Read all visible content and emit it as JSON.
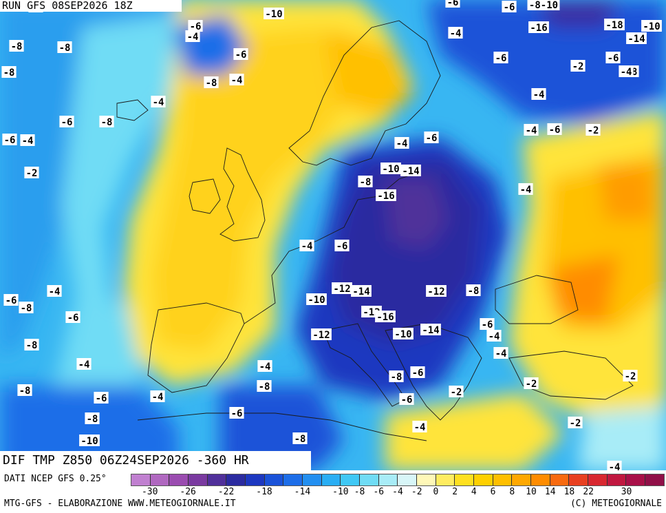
{
  "run_label": "RUN GFS 08SEP2026 18Z",
  "title": "DIF TMP Z850 06Z24SEP2026 -360 HR",
  "source_note": "DATI NCEP GFS 0.25°",
  "footer_left": "MTG-GFS - ELABORAZIONE WWW.METEOGIORNALE.IT",
  "footer_right": "(C) METEOGIORNALE",
  "legend": {
    "colors": [
      "#c080d0",
      "#b068c0",
      "#9a4cb0",
      "#7a3aa0",
      "#50309a",
      "#2b2ba0",
      "#1d38c0",
      "#1a52d8",
      "#1e6ee8",
      "#238ff0",
      "#2aaef4",
      "#40c8f5",
      "#70dcf5",
      "#a8ecf7",
      "#d8f6f8",
      "#fff8b8",
      "#ffec60",
      "#ffe020",
      "#ffd000",
      "#ffbf00",
      "#ffa800",
      "#ff8c00",
      "#f86a10",
      "#e84020",
      "#d82830",
      "#c01840",
      "#a81048",
      "#901048"
    ],
    "tick_labels": [
      "-30",
      "-26",
      "-22",
      "-18",
      "-14",
      "-10",
      "-8",
      "-6",
      "-4",
      "-2",
      "0",
      "2",
      "4",
      "6",
      "8",
      "10",
      "14",
      "18",
      "22",
      "30"
    ]
  },
  "contour_labels": [
    {
      "text": "-8"
    },
    {
      "text": "-6"
    },
    {
      "text": "-10"
    },
    {
      "text": "-6"
    },
    {
      "text": "-8-10"
    },
    {
      "text": "-18"
    },
    {
      "text": "-10"
    },
    {
      "text": "-14"
    },
    {
      "text": "-8"
    },
    {
      "text": "-8"
    },
    {
      "text": "-6"
    },
    {
      "text": "-4"
    },
    {
      "text": "-4"
    },
    {
      "text": "-16"
    },
    {
      "text": "-8"
    },
    {
      "text": "-6"
    },
    {
      "text": "-8"
    },
    {
      "text": "-6"
    },
    {
      "text": "-8"
    },
    {
      "text": "-4"
    },
    {
      "text": "-6"
    },
    {
      "text": "-2"
    },
    {
      "text": "-4"
    },
    {
      "text": "-4"
    },
    {
      "text": "-4"
    },
    {
      "text": "-6"
    },
    {
      "text": "-8"
    },
    {
      "text": "-4"
    },
    {
      "text": "-6"
    },
    {
      "text": "-2"
    },
    {
      "text": "-6"
    },
    {
      "text": "-4"
    },
    {
      "text": "-4"
    },
    {
      "text": "-6"
    },
    {
      "text": "-2"
    },
    {
      "text": "-10"
    },
    {
      "text": "-14"
    },
    {
      "text": "-8"
    },
    {
      "text": "-16"
    },
    {
      "text": "-4"
    },
    {
      "text": "-4"
    },
    {
      "text": "-6"
    },
    {
      "text": "-12"
    },
    {
      "text": "-14"
    },
    {
      "text": "-12"
    },
    {
      "text": "-8"
    },
    {
      "text": "-4"
    },
    {
      "text": "-6"
    },
    {
      "text": "-8"
    },
    {
      "text": "-10"
    },
    {
      "text": "-12"
    },
    {
      "text": "-16"
    },
    {
      "text": "-6"
    },
    {
      "text": "-6"
    },
    {
      "text": "-12"
    },
    {
      "text": "-10"
    },
    {
      "text": "-14"
    },
    {
      "text": "-4"
    },
    {
      "text": "-8"
    },
    {
      "text": "-4"
    },
    {
      "text": "-4"
    },
    {
      "text": "-4"
    },
    {
      "text": "-8"
    },
    {
      "text": "-6"
    },
    {
      "text": "-8"
    },
    {
      "text": "-2"
    },
    {
      "text": "-2"
    },
    {
      "text": "-8"
    },
    {
      "text": "-6"
    },
    {
      "text": "-4"
    },
    {
      "text": "-6"
    },
    {
      "text": "-2"
    },
    {
      "text": "-8"
    },
    {
      "text": "-6"
    },
    {
      "text": "-2"
    },
    {
      "text": "-10"
    },
    {
      "text": "-8"
    },
    {
      "text": "-4"
    },
    {
      "text": "-4"
    }
  ]
}
